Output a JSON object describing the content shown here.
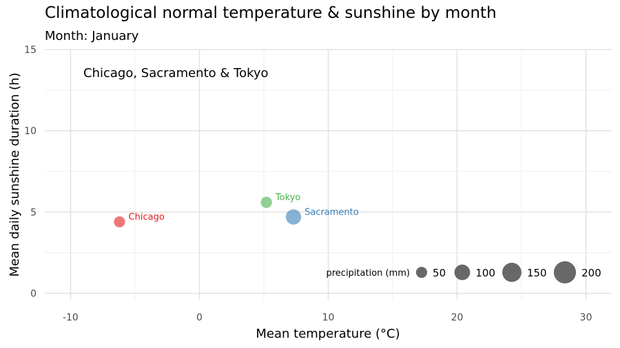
{
  "title": "Climatological normal temperature & sunshine by month",
  "subtitle": "Month: January",
  "chart_data": {
    "type": "scatter",
    "xlabel": "Mean temperature (°C)",
    "ylabel": "Mean daily sunshine duration (h)",
    "xlim": [
      -12,
      32
    ],
    "ylim": [
      -0.4,
      15
    ],
    "x_ticks": [
      -10,
      0,
      10,
      20,
      30
    ],
    "x_tick_labels": [
      "-10",
      "0",
      "10",
      "20",
      "30"
    ],
    "y_ticks": [
      0,
      5,
      10,
      15
    ],
    "y_tick_labels": [
      "0",
      "5",
      "10",
      "15"
    ],
    "grid": true,
    "annotation": "Chicago, Sacramento & Tokyo",
    "points": [
      {
        "label": "Chicago",
        "x": -6.2,
        "y": 4.4,
        "precipitation": 50,
        "color": "#e41a1c"
      },
      {
        "label": "Sacramento",
        "x": 7.3,
        "y": 4.7,
        "precipitation": 95,
        "color": "#377eb8"
      },
      {
        "label": "Tokyo",
        "x": 5.2,
        "y": 5.6,
        "precipitation": 52,
        "color": "#4daf4a"
      }
    ],
    "legend": {
      "title": "precipitation (mm)",
      "position": "bottom-right",
      "sizes": [
        50,
        100,
        150,
        200
      ],
      "labels": [
        "50",
        "100",
        "150",
        "200"
      ],
      "color": "#4d4d4d"
    }
  }
}
